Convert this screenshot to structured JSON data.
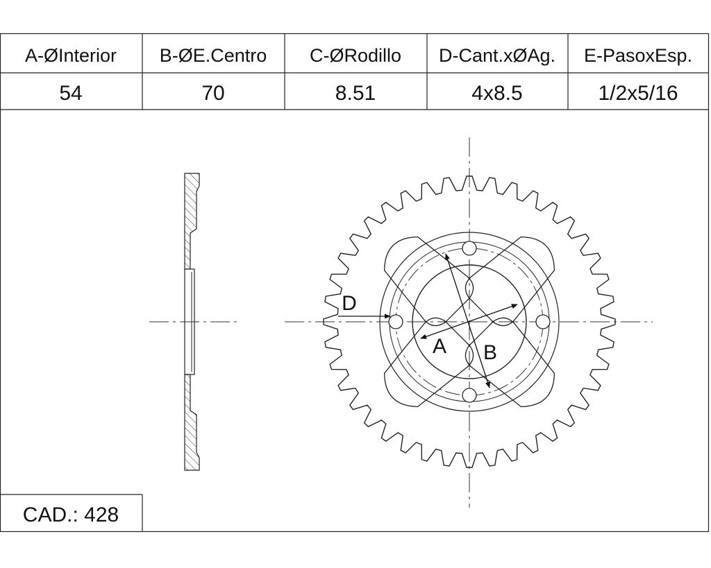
{
  "table": {
    "headers": [
      "A-ØInterior",
      "B-ØE.Centro",
      "C-ØRodillo",
      "D-Cant.xØAg.",
      "E-PasoxEsp."
    ],
    "values": [
      "54",
      "70",
      "8.51",
      "4x8.5",
      "1/2x5/16"
    ]
  },
  "labels": {
    "A": "A",
    "B": "B",
    "D": "D"
  },
  "footer": {
    "cad": "CAD.: 428"
  },
  "sprocket": {
    "teeth": 40,
    "bolt_holes": 4
  }
}
